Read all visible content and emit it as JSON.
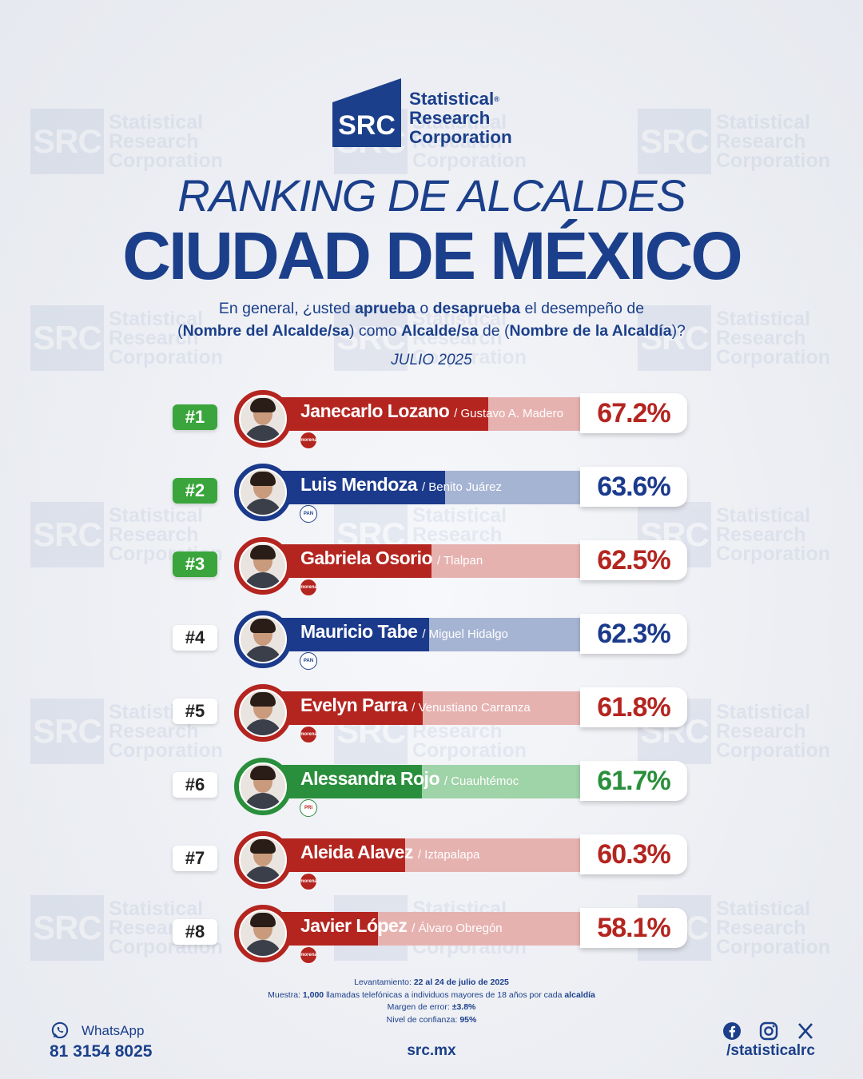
{
  "brand": {
    "logo_abbr": "SRC",
    "logo_line1": "Statistical",
    "logo_line2": "Research",
    "logo_line3": "Corporation",
    "logo_reg": "®"
  },
  "title_line1": "RANKING DE ALCALDES",
  "title_line2": "CIUDAD DE MÉXICO",
  "question": {
    "p1": "En general, ¿usted ",
    "b1": "aprueba",
    "p2": " o ",
    "b2": "desaprueba",
    "p3": " el desempeño de",
    "p4": "(",
    "b3": "Nombre del Alcalde/sa",
    "p5": ") como ",
    "b4": "Alcalde/sa",
    "p6": " de (",
    "b5": "Nombre de la Alcaldía",
    "p7": ")?"
  },
  "period": "JULIO 2025",
  "colors": {
    "morena": "#b42520",
    "morena_light": "#e6b2b0",
    "pan": "#1b3a8c",
    "pan_light": "#a6b4d3",
    "pri": "#2a8f3c",
    "pri_light": "#9fd3a8"
  },
  "chart_data": {
    "type": "bar",
    "orientation": "horizontal",
    "unit": "%",
    "xlim": [
      0,
      100
    ],
    "rows": [
      {
        "rank": "#1",
        "name": "Janecarlo Lozano",
        "district": "/ Gustavo A. Madero",
        "value": 67.2,
        "label": "67.2%",
        "party": "morena",
        "party_label": "morena"
      },
      {
        "rank": "#2",
        "name": "Luis Mendoza",
        "district": "/ Benito Juárez",
        "value": 63.6,
        "label": "63.6%",
        "party": "pan",
        "party_label": "PAN"
      },
      {
        "rank": "#3",
        "name": "Gabriela Osorio",
        "district": "/ Tlalpan",
        "value": 62.5,
        "label": "62.5%",
        "party": "morena",
        "party_label": "morena"
      },
      {
        "rank": "#4",
        "name": "Mauricio Tabe",
        "district": "/ Miguel Hidalgo",
        "value": 62.3,
        "label": "62.3%",
        "party": "pan",
        "party_label": "PAN"
      },
      {
        "rank": "#5",
        "name": "Evelyn Parra",
        "district": "/ Venustiano Carranza",
        "value": 61.8,
        "label": "61.8%",
        "party": "morena",
        "party_label": "morena"
      },
      {
        "rank": "#6",
        "name": "Alessandra Rojo",
        "district": "/ Cuauhtémoc",
        "value": 61.7,
        "label": "61.7%",
        "party": "pri",
        "party_label": "PRI"
      },
      {
        "rank": "#7",
        "name": "Aleida Alavez",
        "district": "/ Iztapalapa",
        "value": 60.3,
        "label": "60.3%",
        "party": "morena",
        "party_label": "morena"
      },
      {
        "rank": "#8",
        "name": "Javier López",
        "district": "/ Álvaro Obregón",
        "value": 58.1,
        "label": "58.1%",
        "party": "morena",
        "party_label": "morena"
      }
    ]
  },
  "footnotes": {
    "l1a": "Levantamiento: ",
    "l1b": "22 al 24 de julio de 2025",
    "l2a": "Muestra: ",
    "l2b": "1,000",
    "l2c": " llamadas telefónicas a individuos mayores de 18 años por cada ",
    "l2d": "alcaldía",
    "l3a": "Margen de error: ",
    "l3b": "±3.8%",
    "l4a": "Nivel de confianza: ",
    "l4b": "95%"
  },
  "footer": {
    "whatsapp_label": "WhatsApp",
    "whatsapp_number": "81 3154 8025",
    "website": "src.mx",
    "handle": "/statisticalrc",
    "social_icons": [
      "facebook-icon",
      "instagram-icon",
      "x-icon"
    ]
  }
}
